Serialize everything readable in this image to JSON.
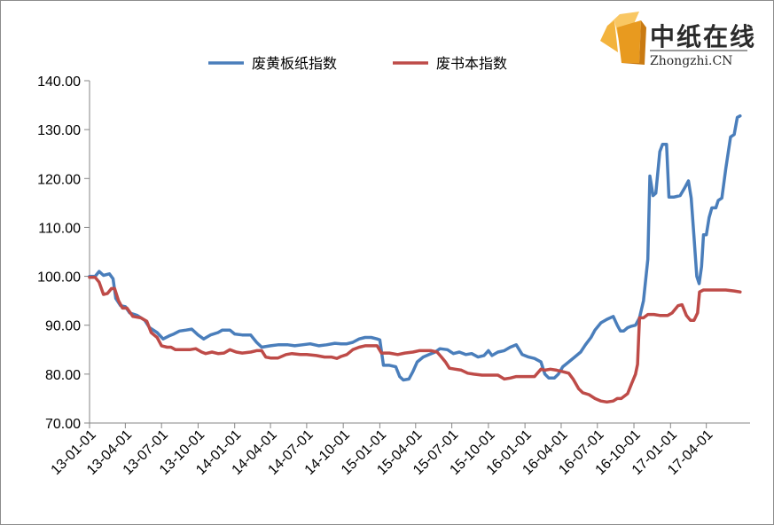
{
  "logo": {
    "cn_text": "中纸在线",
    "en_text": "Zhongzhi.CN"
  },
  "chart_data": {
    "type": "line",
    "title": "",
    "xlabel": "",
    "ylabel": "",
    "ylim": [
      70,
      140
    ],
    "y_ticks": [
      70,
      80,
      90,
      100,
      110,
      120,
      130,
      140
    ],
    "y_tick_labels": [
      "70.00",
      "80.00",
      "90.00",
      "100.00",
      "110.00",
      "120.00",
      "130.00",
      "140.00"
    ],
    "x_range": [
      "2013-01-01",
      "2017-07-20"
    ],
    "x_ticks": [
      "2013-01-01",
      "2013-04-01",
      "2013-07-01",
      "2013-10-01",
      "2014-01-01",
      "2014-04-01",
      "2014-07-01",
      "2014-10-01",
      "2015-01-01",
      "2015-04-01",
      "2015-07-01",
      "2015-10-01",
      "2016-01-01",
      "2016-04-01",
      "2016-07-01",
      "2016-10-01",
      "2017-01-01",
      "2017-04-01"
    ],
    "x_tick_labels": [
      "13-01-01",
      "13-04-01",
      "13-07-01",
      "13-10-01",
      "14-01-01",
      "14-04-01",
      "14-07-01",
      "14-10-01",
      "15-01-01",
      "15-04-01",
      "15-07-01",
      "15-10-01",
      "16-01-01",
      "16-04-01",
      "16-07-01",
      "16-10-01",
      "17-01-01",
      "17-04-01"
    ],
    "legend_position": "top",
    "grid": false,
    "series": [
      {
        "name": "废黄板纸指数",
        "color": "#4a7ebb",
        "points": [
          [
            "2013-01-01",
            100.0
          ],
          [
            "2013-01-15",
            100.0
          ],
          [
            "2013-01-25",
            101.0
          ],
          [
            "2013-02-05",
            100.2
          ],
          [
            "2013-02-20",
            100.5
          ],
          [
            "2013-03-01",
            99.5
          ],
          [
            "2013-03-08",
            95.5
          ],
          [
            "2013-03-20",
            94.0
          ],
          [
            "2013-04-01",
            93.8
          ],
          [
            "2013-04-12",
            92.5
          ],
          [
            "2013-05-01",
            92.0
          ],
          [
            "2013-05-20",
            91.0
          ],
          [
            "2013-06-01",
            89.5
          ],
          [
            "2013-06-20",
            88.5
          ],
          [
            "2013-07-05",
            87.2
          ],
          [
            "2013-07-20",
            87.8
          ],
          [
            "2013-08-01",
            88.2
          ],
          [
            "2013-08-15",
            88.8
          ],
          [
            "2013-09-01",
            89.0
          ],
          [
            "2013-09-15",
            89.2
          ],
          [
            "2013-10-01",
            88.0
          ],
          [
            "2013-10-15",
            87.2
          ],
          [
            "2013-11-01",
            88.0
          ],
          [
            "2013-11-20",
            88.5
          ],
          [
            "2013-12-01",
            89.0
          ],
          [
            "2013-12-20",
            89.0
          ],
          [
            "2014-01-01",
            88.2
          ],
          [
            "2014-01-20",
            88.0
          ],
          [
            "2014-02-10",
            88.0
          ],
          [
            "2014-02-25",
            86.5
          ],
          [
            "2014-03-10",
            85.5
          ],
          [
            "2014-04-01",
            85.8
          ],
          [
            "2014-04-20",
            86.0
          ],
          [
            "2014-05-15",
            86.0
          ],
          [
            "2014-06-01",
            85.8
          ],
          [
            "2014-06-20",
            86.0
          ],
          [
            "2014-07-10",
            86.2
          ],
          [
            "2014-08-01",
            85.8
          ],
          [
            "2014-08-20",
            86.0
          ],
          [
            "2014-09-10",
            86.3
          ],
          [
            "2014-09-25",
            86.2
          ],
          [
            "2014-10-10",
            86.2
          ],
          [
            "2014-10-25",
            86.5
          ],
          [
            "2014-11-10",
            87.2
          ],
          [
            "2014-11-25",
            87.5
          ],
          [
            "2014-12-10",
            87.5
          ],
          [
            "2014-12-25",
            87.2
          ],
          [
            "2015-01-01",
            87.0
          ],
          [
            "2015-01-10",
            81.8
          ],
          [
            "2015-01-25",
            81.8
          ],
          [
            "2015-02-10",
            81.5
          ],
          [
            "2015-02-20",
            79.5
          ],
          [
            "2015-03-01",
            78.8
          ],
          [
            "2015-03-15",
            79.0
          ],
          [
            "2015-03-25",
            80.5
          ],
          [
            "2015-04-05",
            82.5
          ],
          [
            "2015-04-20",
            83.5
          ],
          [
            "2015-05-05",
            84.0
          ],
          [
            "2015-05-20",
            84.5
          ],
          [
            "2015-06-01",
            85.2
          ],
          [
            "2015-06-20",
            85.0
          ],
          [
            "2015-07-05",
            84.2
          ],
          [
            "2015-07-20",
            84.5
          ],
          [
            "2015-08-05",
            84.0
          ],
          [
            "2015-08-20",
            84.2
          ],
          [
            "2015-09-05",
            83.5
          ],
          [
            "2015-09-20",
            83.8
          ],
          [
            "2015-10-01",
            84.8
          ],
          [
            "2015-10-10",
            83.8
          ],
          [
            "2015-10-25",
            84.5
          ],
          [
            "2015-11-10",
            84.8
          ],
          [
            "2015-11-25",
            85.5
          ],
          [
            "2015-12-10",
            86.0
          ],
          [
            "2015-12-25",
            84.0
          ],
          [
            "2016-01-10",
            83.5
          ],
          [
            "2016-01-25",
            83.2
          ],
          [
            "2016-02-10",
            82.5
          ],
          [
            "2016-02-20",
            80.0
          ],
          [
            "2016-03-01",
            79.2
          ],
          [
            "2016-03-15",
            79.2
          ],
          [
            "2016-03-25",
            80.0
          ],
          [
            "2016-04-05",
            81.5
          ],
          [
            "2016-04-20",
            82.5
          ],
          [
            "2016-05-05",
            83.5
          ],
          [
            "2016-05-20",
            84.5
          ],
          [
            "2016-06-01",
            86.0
          ],
          [
            "2016-06-15",
            87.5
          ],
          [
            "2016-06-25",
            89.0
          ],
          [
            "2016-07-10",
            90.5
          ],
          [
            "2016-07-25",
            91.2
          ],
          [
            "2016-08-10",
            91.8
          ],
          [
            "2016-08-20",
            90.0
          ],
          [
            "2016-08-28",
            88.8
          ],
          [
            "2016-09-05",
            88.8
          ],
          [
            "2016-09-15",
            89.5
          ],
          [
            "2016-09-25",
            89.8
          ],
          [
            "2016-10-05",
            90.0
          ],
          [
            "2016-10-15",
            91.5
          ],
          [
            "2016-10-25",
            95.0
          ],
          [
            "2016-11-05",
            103.5
          ],
          [
            "2016-11-10",
            120.5
          ],
          [
            "2016-11-18",
            116.5
          ],
          [
            "2016-11-25",
            117.0
          ],
          [
            "2016-12-05",
            125.5
          ],
          [
            "2016-12-12",
            127.0
          ],
          [
            "2016-12-22",
            127.0
          ],
          [
            "2016-12-28",
            116.2
          ],
          [
            "2017-01-10",
            116.2
          ],
          [
            "2017-01-25",
            116.5
          ],
          [
            "2017-02-05",
            118.0
          ],
          [
            "2017-02-15",
            119.5
          ],
          [
            "2017-02-22",
            116.0
          ],
          [
            "2017-03-01",
            108.0
          ],
          [
            "2017-03-08",
            100.0
          ],
          [
            "2017-03-14",
            98.5
          ],
          [
            "2017-03-20",
            102.0
          ],
          [
            "2017-03-25",
            108.5
          ],
          [
            "2017-04-01",
            108.5
          ],
          [
            "2017-04-08",
            112.0
          ],
          [
            "2017-04-15",
            114.0
          ],
          [
            "2017-04-25",
            114.0
          ],
          [
            "2017-05-01",
            115.5
          ],
          [
            "2017-05-10",
            116.0
          ],
          [
            "2017-05-20",
            122.0
          ],
          [
            "2017-06-01",
            128.5
          ],
          [
            "2017-06-10",
            129.0
          ],
          [
            "2017-06-18",
            132.5
          ],
          [
            "2017-06-25",
            132.8
          ]
        ]
      },
      {
        "name": "废书本指数",
        "color": "#be4b48",
        "points": [
          [
            "2013-01-01",
            99.8
          ],
          [
            "2013-01-15",
            99.8
          ],
          [
            "2013-01-25",
            98.8
          ],
          [
            "2013-02-05",
            96.3
          ],
          [
            "2013-02-15",
            96.5
          ],
          [
            "2013-02-25",
            97.5
          ],
          [
            "2013-03-05",
            97.5
          ],
          [
            "2013-03-15",
            95.0
          ],
          [
            "2013-03-25",
            93.5
          ],
          [
            "2013-04-05",
            93.5
          ],
          [
            "2013-04-20",
            91.8
          ],
          [
            "2013-05-10",
            91.5
          ],
          [
            "2013-05-25",
            90.8
          ],
          [
            "2013-06-05",
            88.5
          ],
          [
            "2013-06-20",
            87.5
          ],
          [
            "2013-07-01",
            85.8
          ],
          [
            "2013-07-15",
            85.5
          ],
          [
            "2013-07-25",
            85.5
          ],
          [
            "2013-08-05",
            85.0
          ],
          [
            "2013-08-20",
            85.0
          ],
          [
            "2013-09-10",
            85.0
          ],
          [
            "2013-09-25",
            85.2
          ],
          [
            "2013-10-10",
            84.5
          ],
          [
            "2013-10-20",
            84.2
          ],
          [
            "2013-11-05",
            84.5
          ],
          [
            "2013-11-20",
            84.2
          ],
          [
            "2013-12-05",
            84.3
          ],
          [
            "2013-12-20",
            85.0
          ],
          [
            "2014-01-05",
            84.5
          ],
          [
            "2014-01-20",
            84.3
          ],
          [
            "2014-02-10",
            84.5
          ],
          [
            "2014-02-25",
            84.8
          ],
          [
            "2014-03-10",
            84.8
          ],
          [
            "2014-03-20",
            83.5
          ],
          [
            "2014-04-01",
            83.3
          ],
          [
            "2014-04-20",
            83.3
          ],
          [
            "2014-05-10",
            84.0
          ],
          [
            "2014-05-25",
            84.2
          ],
          [
            "2014-06-15",
            84.0
          ],
          [
            "2014-07-01",
            84.0
          ],
          [
            "2014-07-25",
            83.8
          ],
          [
            "2014-08-15",
            83.5
          ],
          [
            "2014-09-01",
            83.5
          ],
          [
            "2014-09-15",
            83.2
          ],
          [
            "2014-09-25",
            83.6
          ],
          [
            "2014-10-10",
            84.0
          ],
          [
            "2014-10-25",
            85.0
          ],
          [
            "2014-11-10",
            85.5
          ],
          [
            "2014-11-25",
            85.8
          ],
          [
            "2014-12-10",
            85.8
          ],
          [
            "2014-12-25",
            85.8
          ],
          [
            "2015-01-05",
            84.3
          ],
          [
            "2015-01-25",
            84.3
          ],
          [
            "2015-02-15",
            84.0
          ],
          [
            "2015-03-05",
            84.3
          ],
          [
            "2015-03-25",
            84.5
          ],
          [
            "2015-04-10",
            84.8
          ],
          [
            "2015-04-25",
            84.8
          ],
          [
            "2015-05-10",
            84.8
          ],
          [
            "2015-05-25",
            84.5
          ],
          [
            "2015-06-05",
            83.5
          ],
          [
            "2015-06-15",
            82.5
          ],
          [
            "2015-06-25",
            81.2
          ],
          [
            "2015-07-10",
            81.0
          ],
          [
            "2015-07-25",
            80.8
          ],
          [
            "2015-08-10",
            80.2
          ],
          [
            "2015-08-25",
            80.0
          ],
          [
            "2015-09-15",
            79.8
          ],
          [
            "2015-10-05",
            79.8
          ],
          [
            "2015-10-25",
            79.8
          ],
          [
            "2015-11-10",
            79.0
          ],
          [
            "2015-11-25",
            79.2
          ],
          [
            "2015-12-10",
            79.5
          ],
          [
            "2015-12-25",
            79.5
          ],
          [
            "2016-01-10",
            79.5
          ],
          [
            "2016-01-25",
            79.5
          ],
          [
            "2016-02-10",
            81.0
          ],
          [
            "2016-02-20",
            80.8
          ],
          [
            "2016-03-05",
            81.0
          ],
          [
            "2016-03-20",
            80.8
          ],
          [
            "2016-04-05",
            80.5
          ],
          [
            "2016-04-20",
            80.2
          ],
          [
            "2016-05-01",
            79.0
          ],
          [
            "2016-05-15",
            77.0
          ],
          [
            "2016-05-25",
            76.2
          ],
          [
            "2016-06-10",
            75.8
          ],
          [
            "2016-06-25",
            75.0
          ],
          [
            "2016-07-10",
            74.5
          ],
          [
            "2016-07-25",
            74.3
          ],
          [
            "2016-08-10",
            74.5
          ],
          [
            "2016-08-20",
            75.0
          ],
          [
            "2016-08-30",
            75.0
          ],
          [
            "2016-09-15",
            76.0
          ],
          [
            "2016-09-25",
            78.0
          ],
          [
            "2016-10-05",
            80.0
          ],
          [
            "2016-10-10",
            82.0
          ],
          [
            "2016-10-15",
            91.5
          ],
          [
            "2016-10-25",
            91.5
          ],
          [
            "2016-11-05",
            92.2
          ],
          [
            "2016-11-20",
            92.2
          ],
          [
            "2016-12-05",
            92.0
          ],
          [
            "2016-12-25",
            92.0
          ],
          [
            "2017-01-05",
            92.5
          ],
          [
            "2017-01-20",
            94.0
          ],
          [
            "2017-01-30",
            94.2
          ],
          [
            "2017-02-10",
            92.0
          ],
          [
            "2017-02-20",
            91.0
          ],
          [
            "2017-03-01",
            91.0
          ],
          [
            "2017-03-10",
            92.5
          ],
          [
            "2017-03-15",
            96.8
          ],
          [
            "2017-03-25",
            97.2
          ],
          [
            "2017-04-10",
            97.2
          ],
          [
            "2017-05-01",
            97.2
          ],
          [
            "2017-05-20",
            97.2
          ],
          [
            "2017-06-10",
            97.0
          ],
          [
            "2017-06-25",
            96.8
          ]
        ]
      }
    ]
  }
}
